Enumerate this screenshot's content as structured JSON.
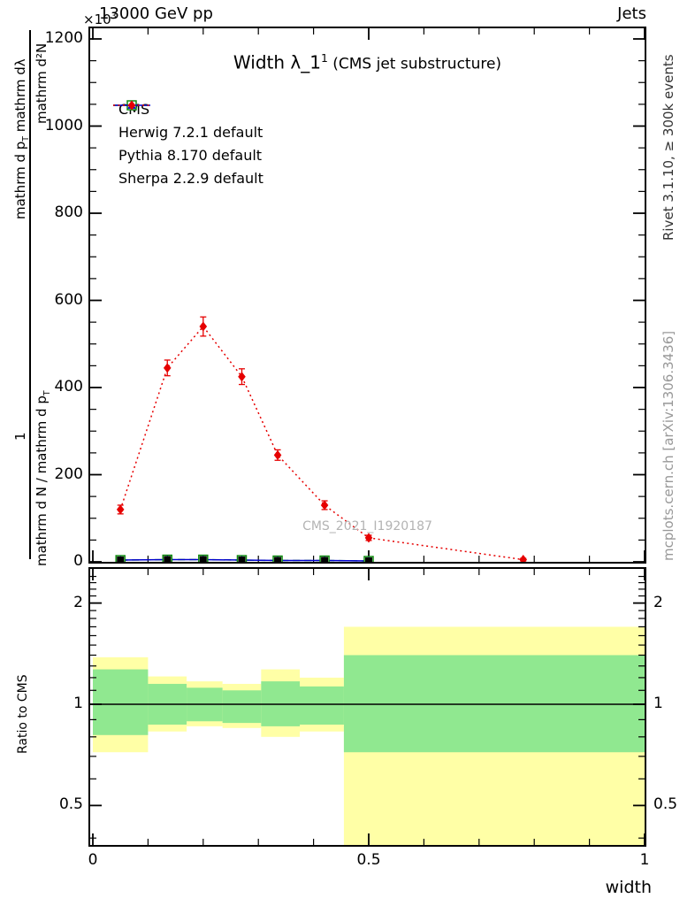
{
  "header": {
    "left": "13000 GeV pp",
    "right": "Jets",
    "scale_base": "×10",
    "scale_exp": "3"
  },
  "title": {
    "main": "Width λ_1",
    "sup": "1",
    "suffix": " (CMS jet substructure)"
  },
  "ylabel": {
    "num_upper": "mathrm d²N",
    "den_upper_a": "mathrm d p",
    "sub_T": "T",
    "den_upper_b": " mathrm dλ",
    "num_lower": "1",
    "den_lower_a": "mathrm d N / mathrm d p"
  },
  "ratio": {
    "ylabel": "Ratio to CMS"
  },
  "xaxis": {
    "label": "width"
  },
  "watermarks": {
    "rivet": "Rivet 3.1.10, ≥ 300k events",
    "mcplots": "mcplots.cern.ch [arXiv:1306.3436]",
    "analysis": "CMS_2021_I1920187"
  },
  "colors": {
    "cms": "#000000",
    "herwig": "#0f8a0f",
    "pythia": "#0000cd",
    "sherpa": "#e60000",
    "yellow_band": "#ffffa6",
    "green_band": "#90e890",
    "reference_line": "#000000"
  },
  "legend": [
    {
      "label": "CMS",
      "color": "#000000",
      "line": "none",
      "marker": "filled-square"
    },
    {
      "label": "Herwig 7.2.1 default",
      "color": "#0f8a0f",
      "line": "dashed",
      "marker": "open-square"
    },
    {
      "label": "Pythia 8.170 default",
      "color": "#0000cd",
      "line": "solid",
      "marker": "filled-triangle"
    },
    {
      "label": "Sherpa 2.2.9 default",
      "color": "#e60000",
      "line": "dotted",
      "marker": "filled-diamond"
    }
  ],
  "chart_data": {
    "type": "line",
    "title": "Width λ_1^1 (CMS jet substructure)",
    "xlabel": "width",
    "ylabel": "1/(dN/dp_T) d²N/(dp_T dλ)",
    "y_unit": "×10³",
    "xlim": [
      0,
      1
    ],
    "ylim": [
      0,
      1224
    ],
    "yticks": [
      0,
      200,
      400,
      600,
      800,
      1000,
      1200
    ],
    "xticks": [
      0,
      0.5,
      1
    ],
    "series": [
      {
        "name": "CMS",
        "color": "#000000",
        "line": "none",
        "marker": "filled-square",
        "x": [
          0.05,
          0.135,
          0.2,
          0.27,
          0.335,
          0.42,
          0.5
        ],
        "y": [
          4,
          5,
          5,
          4,
          3,
          3,
          2
        ]
      },
      {
        "name": "Herwig 7.2.1 default",
        "color": "#0f8a0f",
        "line": "dashed",
        "marker": "open-square",
        "x": [
          0.05,
          0.135,
          0.2,
          0.27,
          0.335,
          0.42,
          0.5
        ],
        "y": [
          4,
          5,
          5,
          4,
          3,
          3,
          2
        ]
      },
      {
        "name": "Pythia 8.170 default",
        "color": "#0000cd",
        "line": "solid",
        "marker": "filled-triangle",
        "x": [
          0.05,
          0.135,
          0.2,
          0.27,
          0.335,
          0.42,
          0.5
        ],
        "y": [
          4,
          5,
          5,
          4,
          3,
          3,
          2
        ]
      },
      {
        "name": "Sherpa 2.2.9 default",
        "color": "#e60000",
        "line": "dotted",
        "marker": "filled-diamond",
        "x": [
          0.05,
          0.135,
          0.2,
          0.27,
          0.335,
          0.42,
          0.5,
          0.78
        ],
        "y": [
          120,
          445,
          540,
          425,
          245,
          130,
          55,
          5
        ],
        "yerr": [
          10,
          18,
          22,
          18,
          12,
          10,
          6,
          3
        ]
      }
    ],
    "ratio_panel": {
      "ylabel": "Ratio to CMS",
      "yscale": "log",
      "yticks": [
        0.5,
        1,
        2
      ],
      "reference_line": 1,
      "bin_edges": [
        0,
        0.1,
        0.17,
        0.235,
        0.305,
        0.375,
        0.455,
        1.0
      ],
      "yellow_band_lo": [
        0.72,
        0.83,
        0.86,
        0.85,
        0.8,
        0.83,
        0.38
      ],
      "yellow_band_hi": [
        1.38,
        1.21,
        1.17,
        1.15,
        1.27,
        1.2,
        1.7
      ],
      "green_band_lo": [
        0.81,
        0.87,
        0.89,
        0.88,
        0.86,
        0.87,
        0.72
      ],
      "green_band_hi": [
        1.27,
        1.15,
        1.12,
        1.1,
        1.17,
        1.13,
        1.4
      ]
    }
  }
}
